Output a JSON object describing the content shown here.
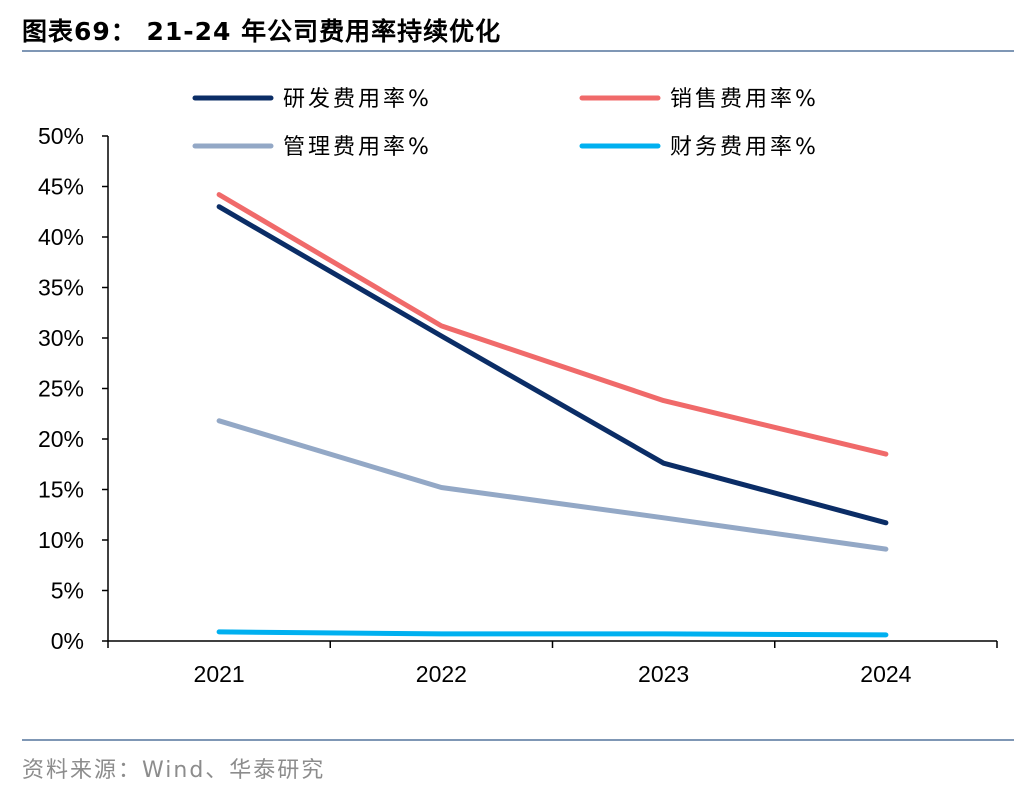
{
  "title": "图表69：  21-24 年公司费用率持续优化",
  "source": "资料来源：Wind、华泰研究",
  "chart_data": {
    "type": "line",
    "x": [
      "2021",
      "2022",
      "2023",
      "2024"
    ],
    "ylim": [
      0,
      50
    ],
    "yticks": [
      "0%",
      "5%",
      "10%",
      "15%",
      "20%",
      "25%",
      "30%",
      "35%",
      "40%",
      "45%",
      "50%"
    ],
    "legend_position": "top",
    "grid": false,
    "series": [
      {
        "name": "研发费用率%",
        "color": "#0b2d66",
        "values": [
          43.0,
          30.2,
          17.6,
          11.7
        ]
      },
      {
        "name": "销售费用率%",
        "color": "#f06a6a",
        "values": [
          44.2,
          31.2,
          23.8,
          18.5
        ]
      },
      {
        "name": "管理费用率%",
        "color": "#93a8c6",
        "values": [
          21.8,
          15.2,
          12.2,
          9.1
        ]
      },
      {
        "name": "财务费用率%",
        "color": "#00b0f0",
        "values": [
          0.9,
          0.7,
          0.7,
          0.6
        ]
      }
    ]
  }
}
